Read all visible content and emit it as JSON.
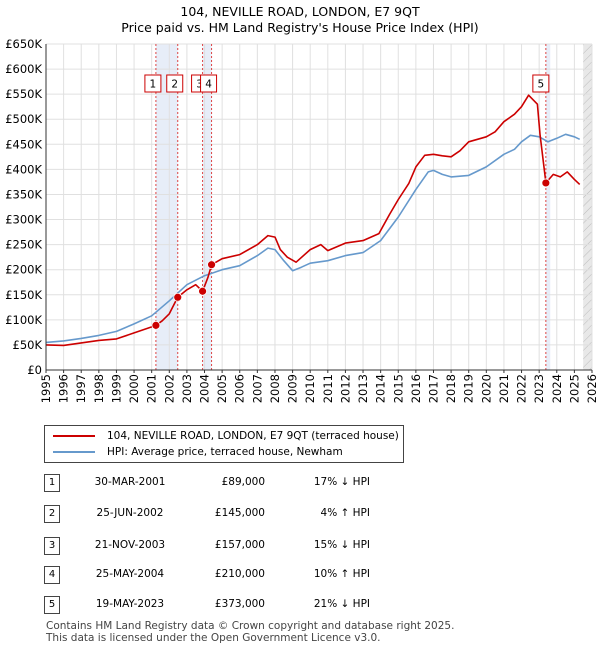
{
  "chart_data": {
    "type": "line",
    "title": "104, NEVILLE ROAD, LONDON, E7 9QT",
    "subtitle": "Price paid vs. HM Land Registry's House Price Index (HPI)",
    "xlim": [
      1995,
      2026
    ],
    "ylim": [
      0,
      650000
    ],
    "x_ticks": [
      1995,
      1996,
      1997,
      1998,
      1999,
      2000,
      2001,
      2002,
      2003,
      2004,
      2005,
      2006,
      2007,
      2008,
      2009,
      2010,
      2011,
      2012,
      2013,
      2014,
      2015,
      2016,
      2017,
      2018,
      2019,
      2020,
      2021,
      2022,
      2023,
      2024,
      2025,
      2026
    ],
    "y_ticks": [
      0,
      50000,
      100000,
      150000,
      200000,
      250000,
      300000,
      350000,
      400000,
      450000,
      500000,
      550000,
      600000,
      650000
    ],
    "y_tick_labels": [
      "£0",
      "£50K",
      "£100K",
      "£150K",
      "£200K",
      "£250K",
      "£300K",
      "£350K",
      "£400K",
      "£450K",
      "£500K",
      "£550K",
      "£600K",
      "£650K"
    ],
    "future_shade_from": 2025.5,
    "series": [
      {
        "name": "104, NEVILLE ROAD, LONDON, E7 9QT (terraced house)",
        "color": "#cc0000",
        "points": [
          [
            1995.0,
            50000
          ],
          [
            1996.0,
            49000
          ],
          [
            1997.0,
            54000
          ],
          [
            1998.0,
            59000
          ],
          [
            1999.0,
            62000
          ],
          [
            2000.0,
            74000
          ],
          [
            2001.0,
            86000
          ],
          [
            2001.24,
            89000
          ],
          [
            2001.6,
            98000
          ],
          [
            2002.0,
            112000
          ],
          [
            2002.48,
            145000
          ],
          [
            2003.0,
            160000
          ],
          [
            2003.5,
            170000
          ],
          [
            2003.89,
            157000
          ],
          [
            2004.2,
            185000
          ],
          [
            2004.4,
            210000
          ],
          [
            2005.0,
            222000
          ],
          [
            2006.0,
            230000
          ],
          [
            2007.0,
            250000
          ],
          [
            2007.6,
            268000
          ],
          [
            2008.0,
            265000
          ],
          [
            2008.3,
            240000
          ],
          [
            2008.7,
            225000
          ],
          [
            2009.2,
            215000
          ],
          [
            2010.0,
            240000
          ],
          [
            2010.6,
            250000
          ],
          [
            2011.0,
            238000
          ],
          [
            2012.0,
            253000
          ],
          [
            2013.0,
            258000
          ],
          [
            2013.9,
            272000
          ],
          [
            2014.5,
            310000
          ],
          [
            2015.0,
            340000
          ],
          [
            2015.6,
            372000
          ],
          [
            2016.0,
            405000
          ],
          [
            2016.5,
            428000
          ],
          [
            2017.0,
            430000
          ],
          [
            2017.5,
            427000
          ],
          [
            2018.0,
            425000
          ],
          [
            2018.5,
            437000
          ],
          [
            2019.0,
            455000
          ],
          [
            2020.0,
            465000
          ],
          [
            2020.5,
            475000
          ],
          [
            2021.0,
            495000
          ],
          [
            2021.6,
            510000
          ],
          [
            2022.0,
            525000
          ],
          [
            2022.4,
            548000
          ],
          [
            2022.9,
            530000
          ],
          [
            2023.05,
            470000
          ],
          [
            2023.38,
            373000
          ],
          [
            2023.8,
            390000
          ],
          [
            2024.2,
            385000
          ],
          [
            2024.6,
            395000
          ],
          [
            2025.0,
            380000
          ],
          [
            2025.3,
            370000
          ]
        ]
      },
      {
        "name": "HPI: Average price, terraced house, Newham",
        "color": "#6699cc",
        "points": [
          [
            1995.0,
            55000
          ],
          [
            1996.0,
            58000
          ],
          [
            1997.0,
            63000
          ],
          [
            1998.0,
            69000
          ],
          [
            1999.0,
            77000
          ],
          [
            2000.0,
            92000
          ],
          [
            2001.0,
            108000
          ],
          [
            2002.0,
            138000
          ],
          [
            2003.0,
            170000
          ],
          [
            2004.0,
            188000
          ],
          [
            2005.0,
            200000
          ],
          [
            2006.0,
            208000
          ],
          [
            2007.0,
            228000
          ],
          [
            2007.6,
            243000
          ],
          [
            2008.0,
            240000
          ],
          [
            2008.5,
            218000
          ],
          [
            2009.0,
            198000
          ],
          [
            2009.5,
            205000
          ],
          [
            2010.0,
            213000
          ],
          [
            2011.0,
            218000
          ],
          [
            2012.0,
            228000
          ],
          [
            2013.0,
            234000
          ],
          [
            2014.0,
            258000
          ],
          [
            2015.0,
            305000
          ],
          [
            2016.0,
            360000
          ],
          [
            2016.7,
            395000
          ],
          [
            2017.0,
            398000
          ],
          [
            2017.5,
            390000
          ],
          [
            2018.0,
            385000
          ],
          [
            2019.0,
            388000
          ],
          [
            2020.0,
            405000
          ],
          [
            2021.0,
            430000
          ],
          [
            2021.6,
            440000
          ],
          [
            2022.0,
            455000
          ],
          [
            2022.5,
            468000
          ],
          [
            2023.0,
            465000
          ],
          [
            2023.5,
            455000
          ],
          [
            2024.0,
            462000
          ],
          [
            2024.5,
            470000
          ],
          [
            2025.0,
            465000
          ],
          [
            2025.3,
            460000
          ]
        ]
      }
    ],
    "sales": [
      {
        "id": "1",
        "x": 2001.24,
        "y": 89000
      },
      {
        "id": "2",
        "x": 2002.48,
        "y": 145000
      },
      {
        "id": "3",
        "x": 2003.89,
        "y": 157000
      },
      {
        "id": "4",
        "x": 2004.4,
        "y": 210000
      },
      {
        "id": "5",
        "x": 2023.38,
        "y": 373000
      }
    ]
  },
  "legend": {
    "property_label": "104, NEVILLE ROAD, LONDON, E7 9QT (terraced house)",
    "hpi_label": "HPI: Average price, terraced house, Newham"
  },
  "transactions": [
    {
      "num": "1",
      "date": "30-MAR-2001",
      "price": "£89,000",
      "hpi": "17% ↓ HPI"
    },
    {
      "num": "2",
      "date": "25-JUN-2002",
      "price": "£145,000",
      "hpi": "4% ↑ HPI"
    },
    {
      "num": "3",
      "date": "21-NOV-2003",
      "price": "£157,000",
      "hpi": "15% ↓ HPI"
    },
    {
      "num": "4",
      "date": "25-MAY-2004",
      "price": "£210,000",
      "hpi": "10% ↑ HPI"
    },
    {
      "num": "5",
      "date": "19-MAY-2023",
      "price": "£373,000",
      "hpi": "21% ↓ HPI"
    }
  ],
  "footer": {
    "line1": "Contains HM Land Registry data © Crown copyright and database right 2025.",
    "line2": "This data is licensed under the Open Government Licence v3.0."
  }
}
